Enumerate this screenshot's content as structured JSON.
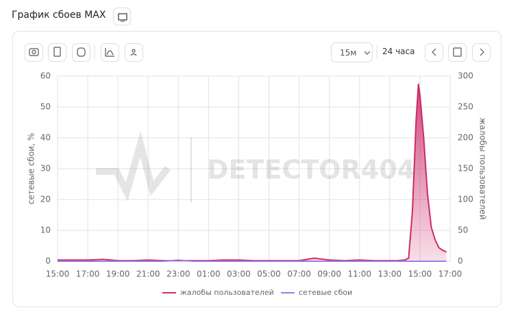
{
  "header": {
    "title": "График сбоев MAX"
  },
  "toolbar": {
    "interval": "15м",
    "period": "24 часа"
  },
  "chart_data": {
    "type": "line",
    "watermark": "DETECTOR404",
    "y_label": "сетевые сбои, %",
    "y2_label": "жалобы пользователей",
    "xlim": [
      0,
      26
    ],
    "xticks": [
      {
        "value": 0,
        "label": "15:00"
      },
      {
        "value": 2,
        "label": "17:00"
      },
      {
        "value": 4,
        "label": "19:00"
      },
      {
        "value": 6,
        "label": "21:00"
      },
      {
        "value": 8,
        "label": "23:00"
      },
      {
        "value": 10,
        "label": "01:00"
      },
      {
        "value": 12,
        "label": "03:00"
      },
      {
        "value": 14,
        "label": "05:00"
      },
      {
        "value": 16,
        "label": "07:00"
      },
      {
        "value": 18,
        "label": "09:00"
      },
      {
        "value": 20,
        "label": "11:00"
      },
      {
        "value": 22,
        "label": "13:00"
      },
      {
        "value": 24,
        "label": "15:00"
      },
      {
        "value": 26,
        "label": "17:00"
      }
    ],
    "ylim": [
      0,
      60
    ],
    "yticks": [
      0,
      10,
      20,
      30,
      40,
      50,
      60
    ],
    "y2lim": [
      0,
      300
    ],
    "y2ticks": [
      0,
      50,
      100,
      150,
      200,
      250,
      300
    ],
    "grid": true,
    "x": [
      0,
      1,
      2,
      3,
      4,
      5,
      6,
      7,
      8,
      9,
      10,
      11,
      12,
      13,
      14,
      15,
      16,
      17,
      18,
      19,
      20,
      21,
      22,
      22.5,
      23,
      23.25,
      23.5,
      23.75,
      23.9,
      24,
      24.25,
      24.5,
      24.75,
      25,
      25.25,
      25.5,
      25.75
    ],
    "series": [
      {
        "name": "жалобы пользователей",
        "color": "#cc2a67",
        "axis": "y2",
        "values": [
          2,
          2,
          2,
          3,
          1,
          1,
          2,
          1,
          1,
          1,
          1,
          2,
          2,
          1,
          1,
          1,
          1,
          5,
          2,
          1,
          2,
          1,
          1,
          1,
          2,
          5,
          80,
          230,
          287,
          270,
          200,
          110,
          55,
          35,
          22,
          18,
          15
        ]
      },
      {
        "name": "сетевые сбои",
        "color": "#9b7bf0",
        "values": [
          0,
          0,
          0,
          0,
          0,
          0,
          0,
          0,
          0.4,
          0,
          0,
          0,
          0,
          0,
          0,
          0,
          0,
          0,
          0,
          0,
          0,
          0,
          0,
          0,
          0,
          0,
          0,
          0,
          0,
          0,
          0,
          0,
          0,
          0,
          0,
          0,
          0
        ]
      }
    ]
  }
}
